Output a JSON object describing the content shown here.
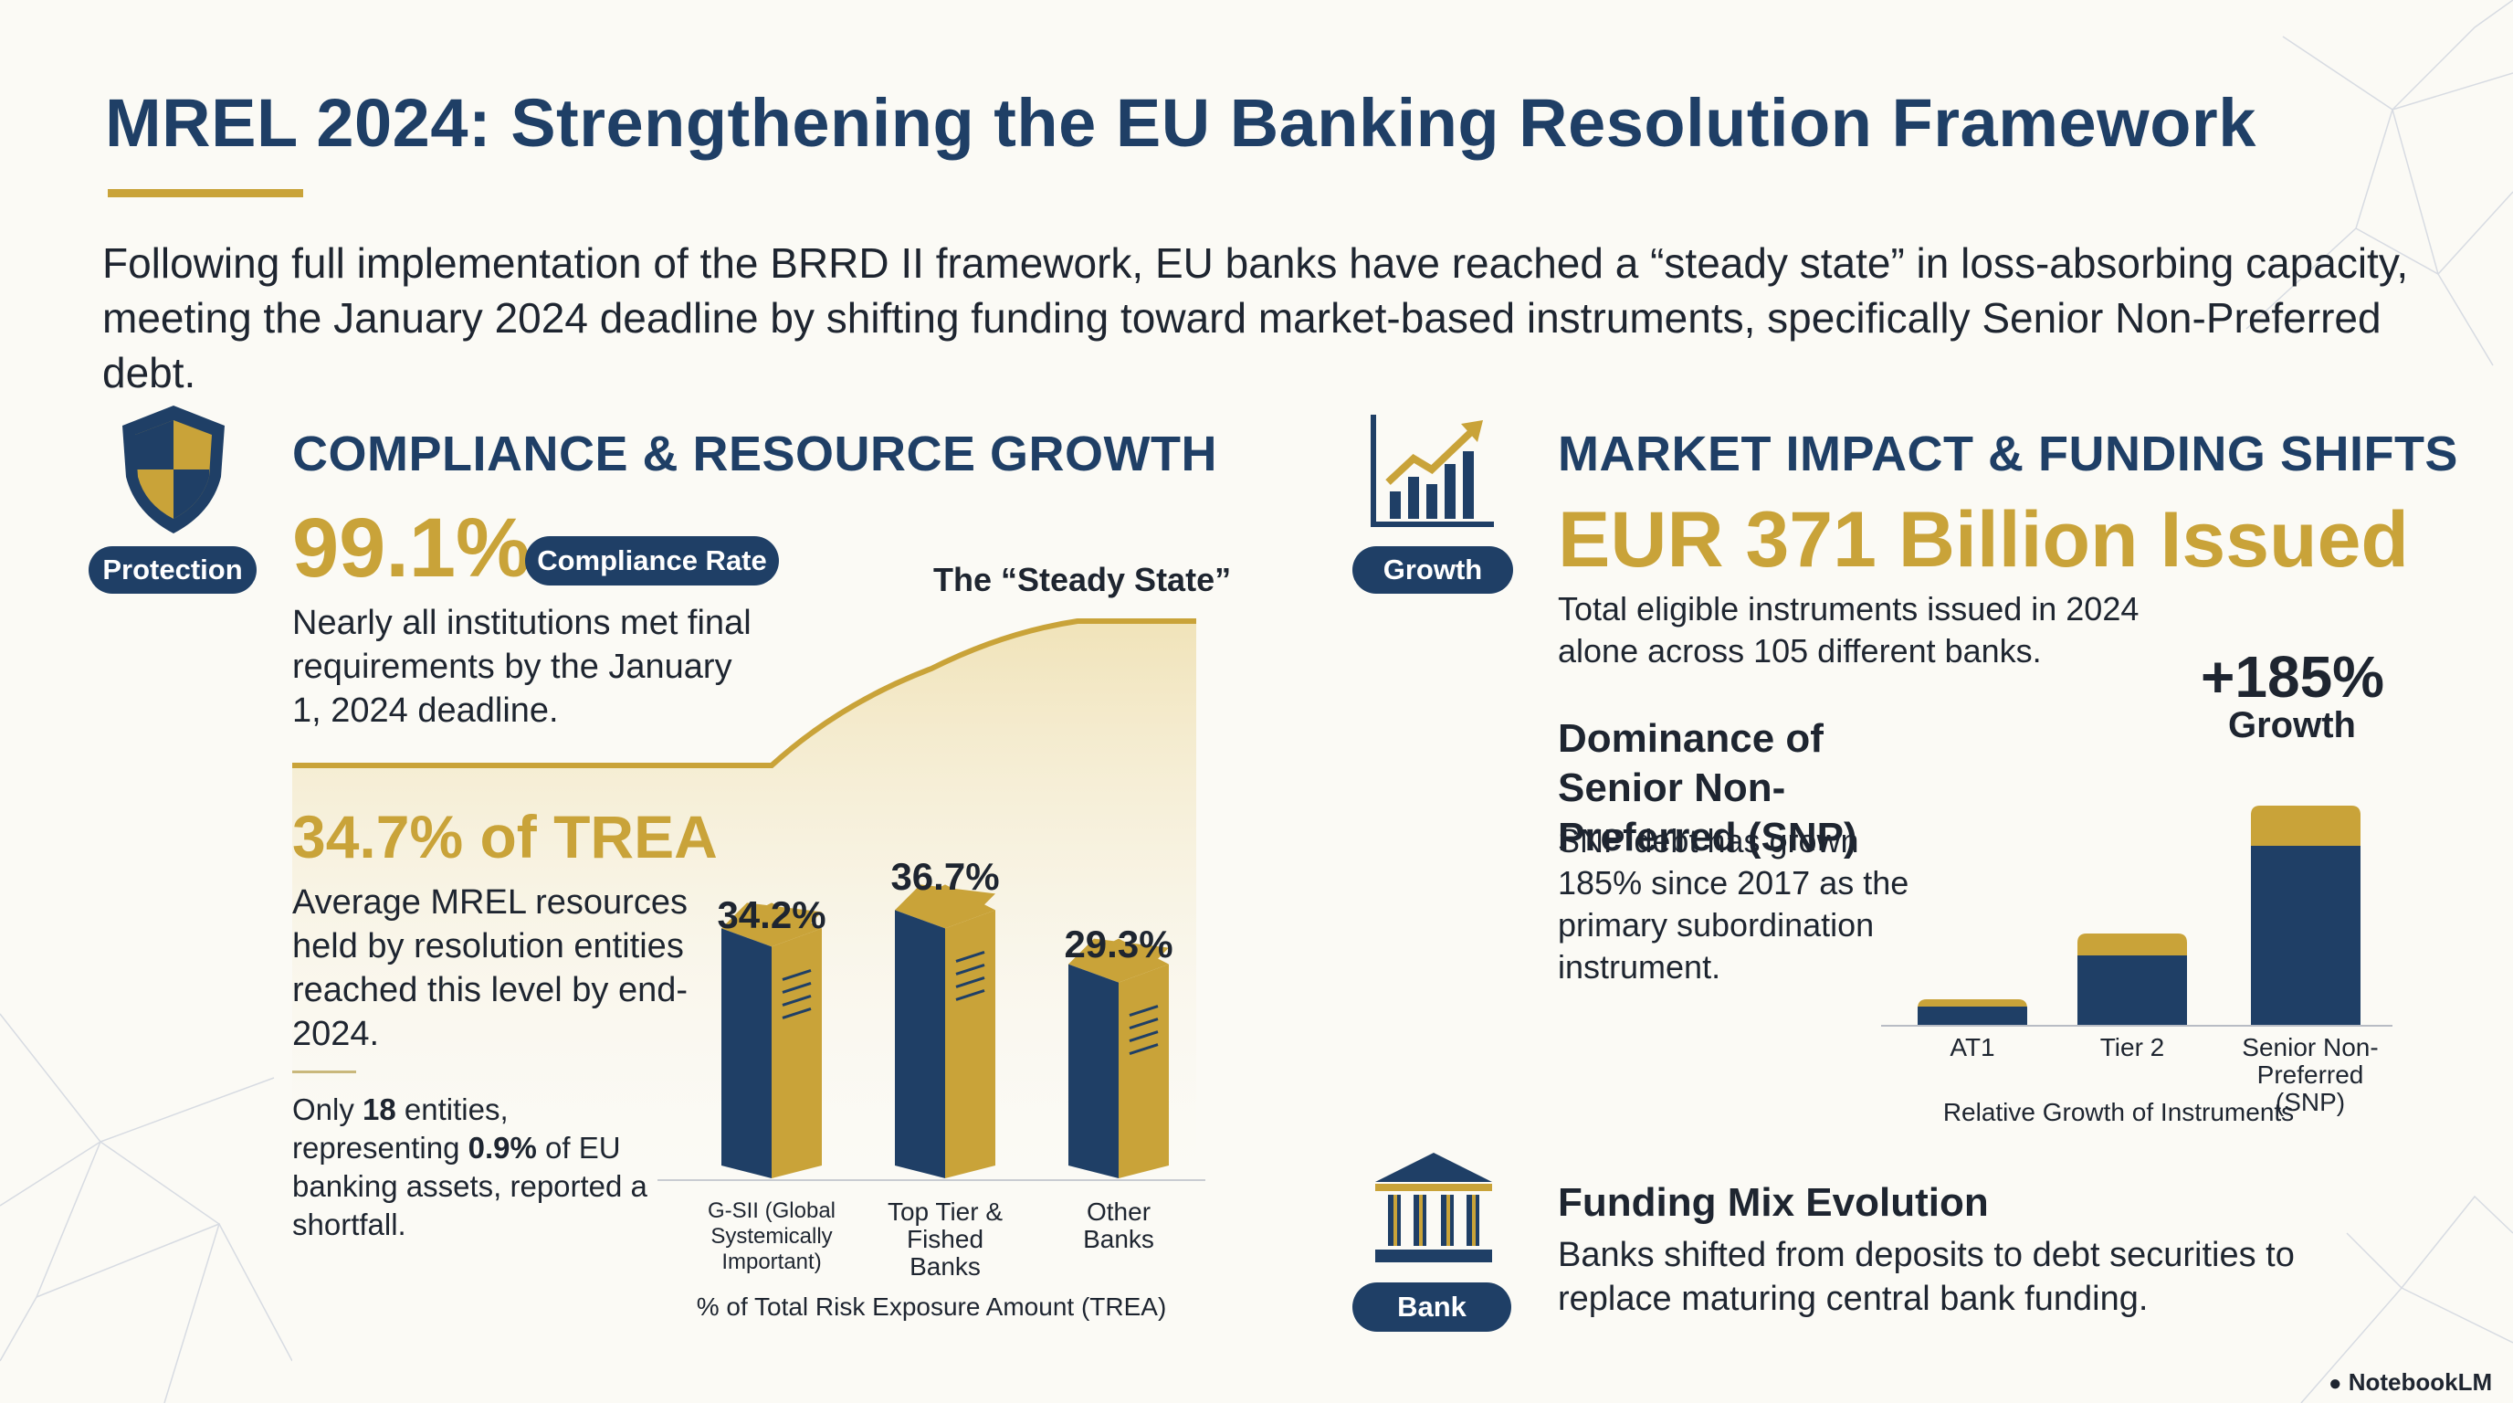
{
  "title": "MREL 2024: Strengthening the EU Banking Resolution Framework",
  "intro": "Following full implementation of the BRRD II framework, EU banks have reached a “steady state” in loss-absorbing capacity, meeting the January 2024 deadline by shifting funding toward market-based instruments, specifically Senior Non-Preferred debt.",
  "left": {
    "icon_badge": "Protection",
    "heading": "COMPLIANCE & RESOURCE GROWTH",
    "compliance_value": "99.1%",
    "compliance_pill": "Compliance Rate",
    "compliance_text": "Nearly all institutions met final requirements by the January 1, 2024 deadline.",
    "steady_state_label": "The “Steady State”",
    "trea_value": "34.7% of TREA",
    "trea_text": "Average MREL resources held by resolution entities reached this level by end-2024.",
    "shortfall_pre": "Only ",
    "shortfall_count": "18",
    "shortfall_mid": " entities, representing ",
    "shortfall_pct": "0.9%",
    "shortfall_post": " of EU banking assets, reported a shortfall."
  },
  "right": {
    "icon_badge": "Growth",
    "heading": "MARKET IMPACT & FUNDING SHIFTS",
    "issued_value": "EUR 371 Billion Issued",
    "issued_text": "Total eligible instruments issued in 2024 alone across 105 different banks.",
    "snp_heading": "Dominance of Senior Non-Preferred (SNP)",
    "snp_text": "SNP debt has grown 185% since 2017 as the primary subordination instrument.",
    "funding_badge": "Bank",
    "funding_heading": "Funding Mix Evolution",
    "funding_text": "Banks shifted from deposits to debt securities to replace maturing central bank funding."
  },
  "branding": "NotebookLM",
  "colors": {
    "navy": "#1f3f66",
    "gold": "#c9a339",
    "background": "#fbfaf5"
  },
  "chart_data": [
    {
      "type": "bar",
      "categories": [
        "G-SII (Global Systemically Important)",
        "Top Tier & Fished Banks",
        "Other Banks"
      ],
      "values": [
        34.2,
        36.7,
        29.3
      ],
      "value_labels": [
        "34.2%",
        "36.7%",
        "29.3%"
      ],
      "xlabel": "% of Total Risk Exposure Amount (TREA)"
    },
    {
      "type": "bar",
      "categories": [
        "AT1",
        "Tier 2",
        "Senior Non-Preferred (SNP)"
      ],
      "series": [
        {
          "values": [
            0.5,
            1.9,
            4.9
          ]
        },
        {
          "values": [
            0.2,
            0.6,
            1.1
          ]
        }
      ],
      "annotation": "+185%",
      "annotation_sub": "Growth",
      "xlabel": "Relative Growth of Instruments"
    }
  ]
}
